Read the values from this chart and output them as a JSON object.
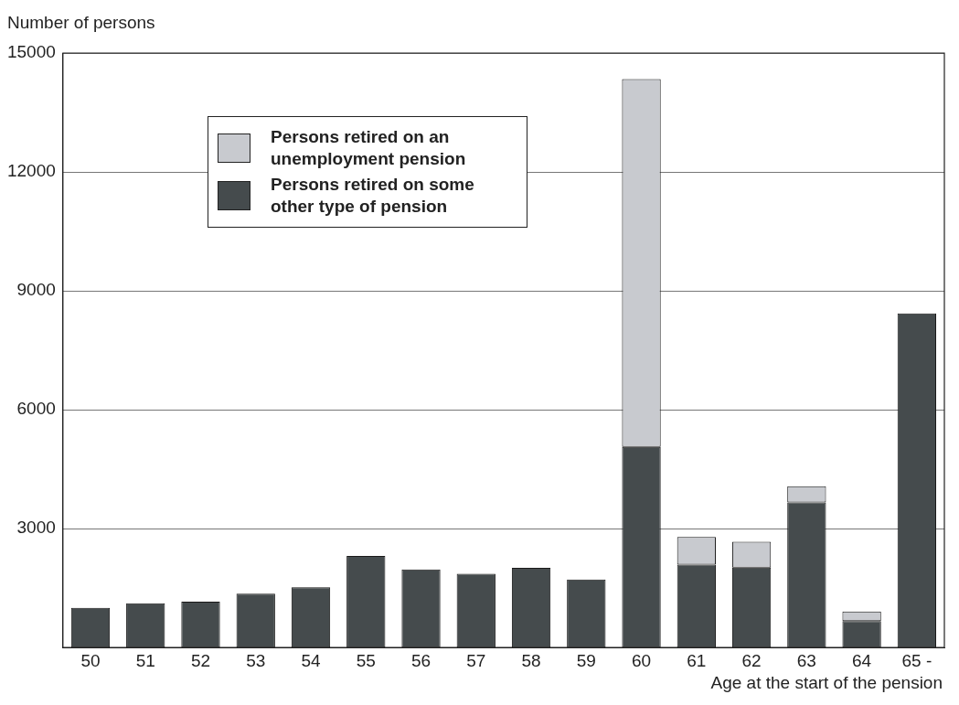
{
  "chart_data": {
    "type": "bar",
    "stacked": true,
    "ylabel": "Number of persons",
    "xlabel": "Age at the start of the pension",
    "categories": [
      "50",
      "51",
      "52",
      "53",
      "54",
      "55",
      "56",
      "57",
      "58",
      "59",
      "60",
      "61",
      "62",
      "63",
      "64",
      "65 -"
    ],
    "series": [
      {
        "name": "Persons retired on some other type of pension",
        "color": "#454b4d",
        "values": [
          1000,
          1120,
          1160,
          1360,
          1520,
          2310,
          1970,
          1860,
          2010,
          1720,
          5060,
          2090,
          2020,
          3660,
          670,
          8430
        ]
      },
      {
        "name": "Persons retired on an unemployment pension",
        "color": "#c8cacf",
        "values": [
          0,
          0,
          0,
          0,
          0,
          0,
          0,
          0,
          0,
          0,
          9280,
          700,
          650,
          410,
          240,
          0
        ]
      }
    ],
    "ylim": [
      0,
      15000
    ],
    "yticks": [
      3000,
      6000,
      9000,
      12000,
      15000
    ],
    "grid": "y",
    "legend": "top left"
  }
}
